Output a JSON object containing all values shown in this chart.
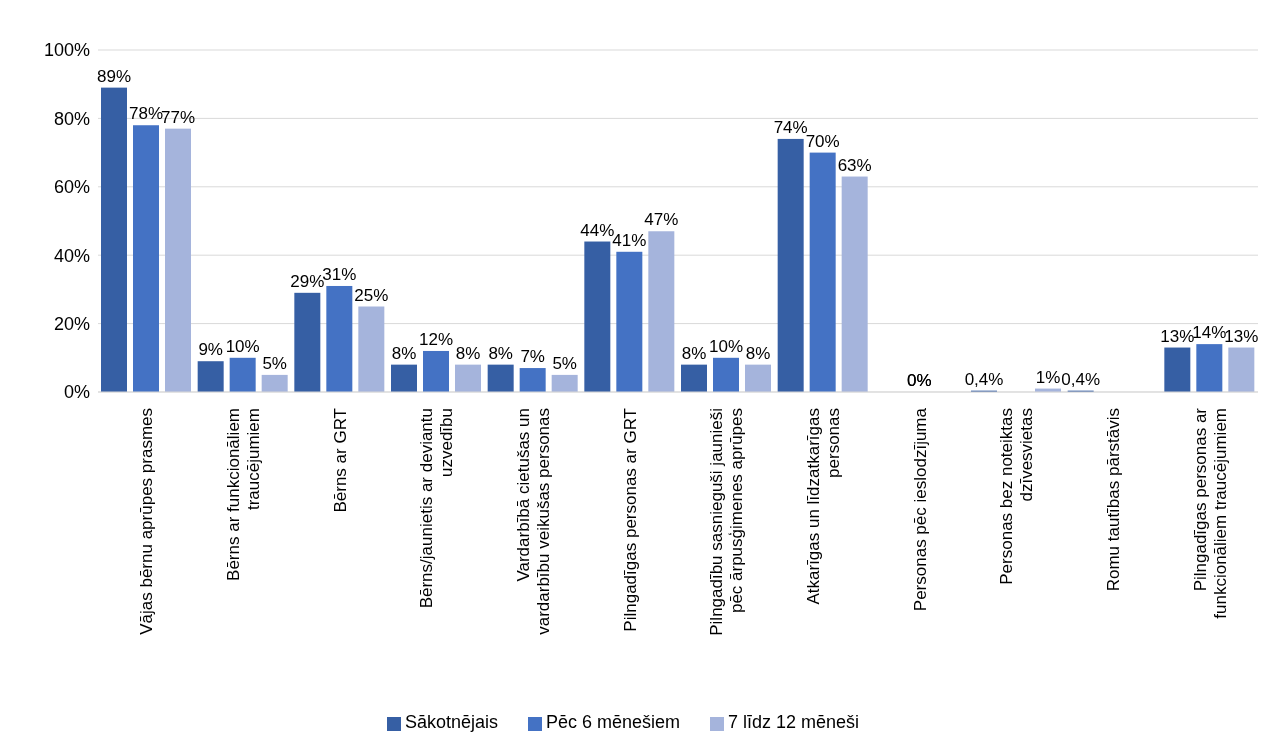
{
  "chart_data": {
    "type": "bar",
    "categories": [
      "Vājas bērnu aprūpes prasmes",
      "Bērns ar funkcionāliem traucējumiem",
      "Bērns ar GRT",
      "Bērns/jaunietis ar deviantu uzvedību",
      "Vardarbībā cietušas un vardarbību veikušas personas",
      "Pilngadīgas personas ar GRT",
      "Pilngadību sasnieguši jaunieši pēc ārpusģimenes aprūpes",
      "Atkarīgas un līdzatkarīgas personas",
      "Personas pēc ieslodzījuma",
      "Personas bez noteiktas dzīvesvietas",
      "Romu tautības pārstāvis",
      "Pilngadīgas personas ar funkcionāliem traucējumiem"
    ],
    "series": [
      {
        "name": "Sākotnējais",
        "color": "#365fa4",
        "values": [
          89,
          9,
          29,
          8,
          8,
          44,
          8,
          74,
          null,
          0.4,
          0.4,
          13
        ],
        "value_labels": [
          "89%",
          "9%",
          "29%",
          "8%",
          "8%",
          "44%",
          "8%",
          "74%",
          null,
          "0,4%",
          "0,4%",
          "13%"
        ]
      },
      {
        "name": "Pēc 6 mēnešiem",
        "color": "#4472c4",
        "values": [
          78,
          10,
          31,
          12,
          7,
          41,
          10,
          70,
          0,
          null,
          null,
          14
        ],
        "value_labels": [
          "78%",
          "10%",
          "31%",
          "12%",
          "7%",
          "41%",
          "10%",
          "70%",
          "0%",
          null,
          null,
          "14%"
        ]
      },
      {
        "name": "7 līdz 12 mēneši",
        "color": "#a5b4dc",
        "values": [
          77,
          5,
          25,
          8,
          5,
          47,
          8,
          63,
          null,
          1,
          null,
          13
        ],
        "value_labels": [
          "77%",
          "5%",
          "25%",
          "8%",
          "5%",
          "47%",
          "8%",
          "63%",
          null,
          "1%",
          null,
          "13%"
        ]
      }
    ],
    "ylim": [
      0,
      100
    ],
    "yticks": [
      {
        "value": 0,
        "label": "0%"
      },
      {
        "value": 20,
        "label": "20%"
      },
      {
        "value": 40,
        "label": "40%"
      },
      {
        "value": 60,
        "label": "60%"
      },
      {
        "value": 80,
        "label": "80%"
      },
      {
        "value": 100,
        "label": "100%"
      }
    ],
    "grid": "y",
    "legend": "bottom"
  }
}
